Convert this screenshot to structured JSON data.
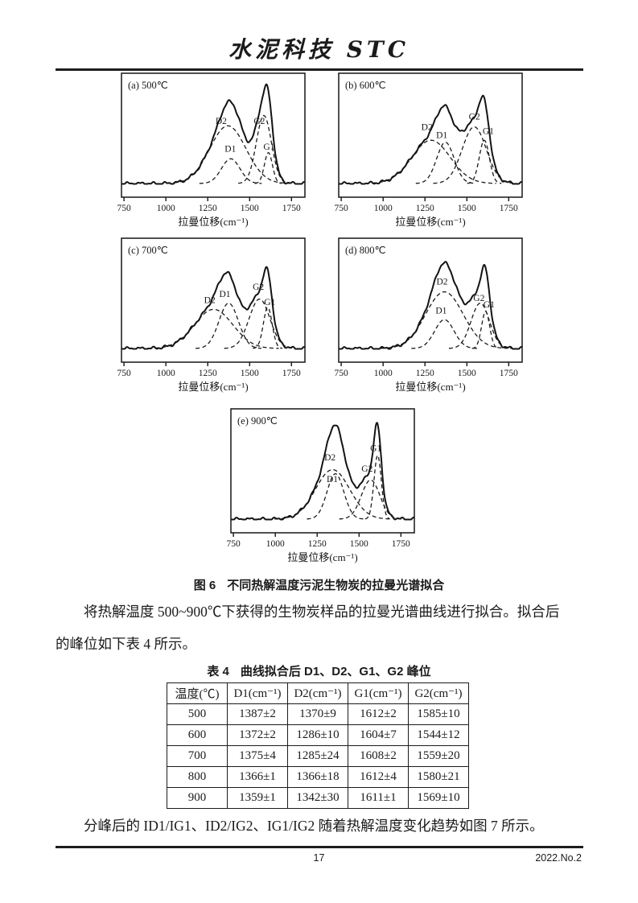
{
  "header": {
    "journal_title": "水泥科技 STC"
  },
  "figure": {
    "caption_label": "图 6",
    "caption_text": "不同热解温度污泥生物炭的拉曼光谱拟合"
  },
  "paragraphs": {
    "p1": "将热解温度 500~900℃下获得的生物炭样品的拉曼光谱曲线进行拟合。拟合后的峰位如下表 4 所示。",
    "p2": "分峰后的 ID1/IG1、ID2/IG2、IG1/IG2 随着热解温度变化趋势如图 7 所示。"
  },
  "table": {
    "title_label": "表 4",
    "title_text": "曲线拟合后 D1、D2、G1、G2 峰位",
    "columns": [
      "温度(℃)",
      "D1(cm⁻¹)",
      "D2(cm⁻¹)",
      "G1(cm⁻¹)",
      "G2(cm⁻¹)"
    ],
    "rows": [
      [
        "500",
        "1387±2",
        "1370±9",
        "1612±2",
        "1585±10"
      ],
      [
        "600",
        "1372±2",
        "1286±10",
        "1604±7",
        "1544±12"
      ],
      [
        "700",
        "1375±4",
        "1285±24",
        "1608±2",
        "1559±20"
      ],
      [
        "800",
        "1366±1",
        "1366±18",
        "1612±4",
        "1580±21"
      ],
      [
        "900",
        "1359±1",
        "1342±30",
        "1611±1",
        "1569±10"
      ]
    ]
  },
  "chart_data": [
    {
      "type": "line",
      "panel_label": "(a) 500℃",
      "temperature_c": 500,
      "xlabel": "拉曼位移(cm⁻¹)",
      "x_range": [
        735,
        1830
      ],
      "x_ticks": [
        750,
        1000,
        1250,
        1500,
        1750
      ],
      "note": "solid curve = measured Raman spectrum with fitted envelope; dashed curves = Gaussian components",
      "peaks": [
        {
          "label": "D1",
          "center": 1387,
          "amplitude": 0.24,
          "sigma": 55,
          "label_x": 1385,
          "label_y": 0.31
        },
        {
          "label": "D2",
          "center": 1370,
          "amplitude": 0.56,
          "sigma": 108,
          "label_x": 1330,
          "label_y": 0.58
        },
        {
          "label": "G1",
          "center": 1612,
          "amplitude": 0.3,
          "sigma": 24,
          "label_x": 1616,
          "label_y": 0.33
        },
        {
          "label": "G2",
          "center": 1585,
          "amplitude": 0.66,
          "sigma": 45,
          "label_x": 1558,
          "label_y": 0.58
        }
      ]
    },
    {
      "type": "line",
      "panel_label": "(b) 600℃",
      "temperature_c": 600,
      "xlabel": "拉曼位移(cm⁻¹)",
      "x_range": [
        735,
        1830
      ],
      "x_ticks": [
        750,
        1000,
        1250,
        1500,
        1750
      ],
      "note": "solid curve = measured Raman spectrum with fitted envelope; dashed curves = Gaussian components",
      "peaks": [
        {
          "label": "D1",
          "center": 1372,
          "amplitude": 0.4,
          "sigma": 52,
          "label_x": 1350,
          "label_y": 0.44
        },
        {
          "label": "D2",
          "center": 1286,
          "amplitude": 0.42,
          "sigma": 115,
          "label_x": 1262,
          "label_y": 0.52
        },
        {
          "label": "G1",
          "center": 1604,
          "amplitude": 0.42,
          "sigma": 30,
          "label_x": 1628,
          "label_y": 0.48
        },
        {
          "label": "G2",
          "center": 1544,
          "amplitude": 0.55,
          "sigma": 72,
          "label_x": 1545,
          "label_y": 0.62
        }
      ]
    },
    {
      "type": "line",
      "panel_label": "(c) 700℃",
      "temperature_c": 700,
      "xlabel": "拉曼位移(cm⁻¹)",
      "x_range": [
        735,
        1830
      ],
      "x_ticks": [
        750,
        1000,
        1250,
        1500,
        1750
      ],
      "note": "solid curve = measured Raman spectrum with fitted envelope; dashed curves = Gaussian components",
      "peaks": [
        {
          "label": "D1",
          "center": 1375,
          "amplitude": 0.44,
          "sigma": 58,
          "label_x": 1352,
          "label_y": 0.5
        },
        {
          "label": "D2",
          "center": 1285,
          "amplitude": 0.38,
          "sigma": 115,
          "label_x": 1262,
          "label_y": 0.44
        },
        {
          "label": "G1",
          "center": 1608,
          "amplitude": 0.4,
          "sigma": 26,
          "label_x": 1620,
          "label_y": 0.42
        },
        {
          "label": "G2",
          "center": 1559,
          "amplitude": 0.48,
          "sigma": 62,
          "label_x": 1552,
          "label_y": 0.57
        }
      ]
    },
    {
      "type": "line",
      "panel_label": "(d) 800℃",
      "temperature_c": 800,
      "xlabel": "拉曼位移(cm⁻¹)",
      "x_range": [
        735,
        1830
      ],
      "x_ticks": [
        750,
        1000,
        1250,
        1500,
        1750
      ],
      "note": "solid curve = measured Raman spectrum with fitted envelope; dashed curves = Gaussian components",
      "peaks": [
        {
          "label": "D1",
          "center": 1366,
          "amplitude": 0.28,
          "sigma": 58,
          "label_x": 1347,
          "label_y": 0.34
        },
        {
          "label": "D2",
          "center": 1366,
          "amplitude": 0.55,
          "sigma": 112,
          "label_x": 1352,
          "label_y": 0.62
        },
        {
          "label": "G1",
          "center": 1612,
          "amplitude": 0.36,
          "sigma": 24,
          "label_x": 1632,
          "label_y": 0.4
        },
        {
          "label": "G2",
          "center": 1580,
          "amplitude": 0.44,
          "sigma": 55,
          "label_x": 1572,
          "label_y": 0.46
        }
      ]
    },
    {
      "type": "line",
      "panel_label": "(e) 900℃",
      "temperature_c": 900,
      "xlabel": "拉曼位移(cm⁻¹)",
      "x_range": [
        735,
        1830
      ],
      "x_ticks": [
        750,
        1000,
        1250,
        1500,
        1750
      ],
      "note": "solid curve = measured Raman spectrum with fitted envelope; dashed curves = Gaussian components",
      "peaks": [
        {
          "label": "D1",
          "center": 1359,
          "amplitude": 0.44,
          "sigma": 50,
          "label_x": 1340,
          "label_y": 0.36
        },
        {
          "label": "D2",
          "center": 1342,
          "amplitude": 0.48,
          "sigma": 102,
          "label_x": 1326,
          "label_y": 0.57
        },
        {
          "label": "G1",
          "center": 1611,
          "amplitude": 0.62,
          "sigma": 22,
          "label_x": 1600,
          "label_y": 0.66
        },
        {
          "label": "G2",
          "center": 1569,
          "amplitude": 0.38,
          "sigma": 55,
          "label_x": 1548,
          "label_y": 0.46
        }
      ]
    }
  ],
  "footer": {
    "page_number": "17",
    "issue": "2022.No.2"
  }
}
